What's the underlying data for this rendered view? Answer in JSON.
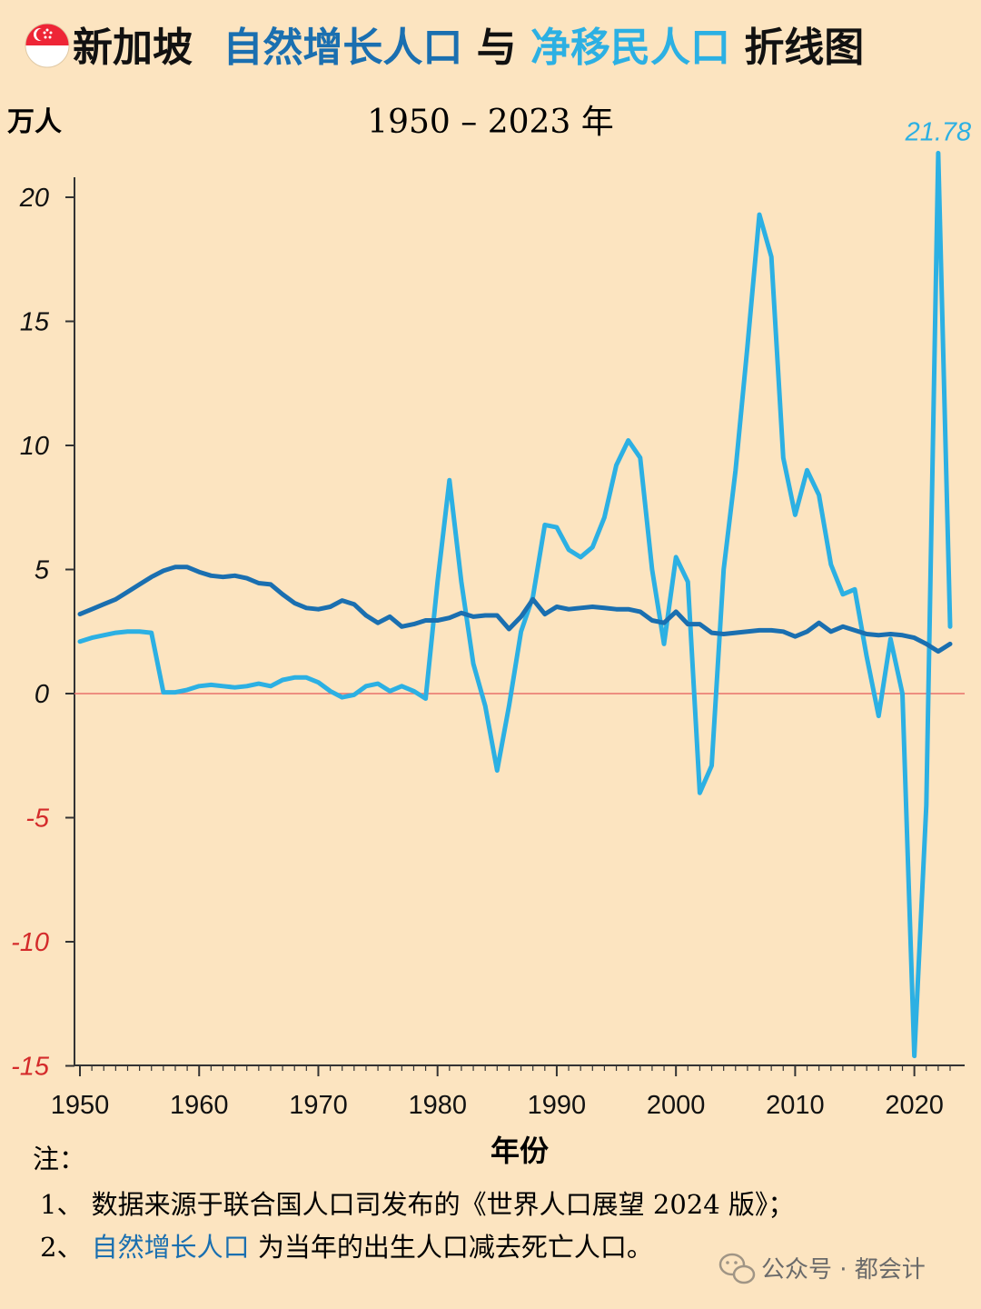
{
  "header": {
    "title_part1": "新加坡",
    "title_part2": "自然增长人口",
    "title_part3": "与",
    "title_part4": "净移民人口",
    "title_part5": " 折线图",
    "subtitle": "1950 – 2023 年",
    "unit": "万人",
    "flag_icon": "singapore-flag-icon"
  },
  "colors": {
    "natural": "#1a6fb0",
    "migration": "#2cb0e3",
    "zero_line": "#e8716b",
    "negative_tick": "#d42b2b",
    "axis": "#333333"
  },
  "chart_data": {
    "type": "line",
    "xlabel": "年份",
    "ylabel": "万人",
    "xlim": [
      1950,
      2023
    ],
    "ylim": [
      -15,
      22
    ],
    "xticks": [
      "1950",
      "1960",
      "1970",
      "1980",
      "1990",
      "2000",
      "2010",
      "2020"
    ],
    "yticks": [
      "20",
      "15",
      "10",
      "5",
      "0",
      "-5",
      "-10",
      "-15"
    ],
    "x": [
      1950,
      1951,
      1952,
      1953,
      1954,
      1955,
      1956,
      1957,
      1958,
      1959,
      1960,
      1961,
      1962,
      1963,
      1964,
      1965,
      1966,
      1967,
      1968,
      1969,
      1970,
      1971,
      1972,
      1973,
      1974,
      1975,
      1976,
      1977,
      1978,
      1979,
      1980,
      1981,
      1982,
      1983,
      1984,
      1985,
      1986,
      1987,
      1988,
      1989,
      1990,
      1991,
      1992,
      1993,
      1994,
      1995,
      1996,
      1997,
      1998,
      1999,
      2000,
      2001,
      2002,
      2003,
      2004,
      2005,
      2006,
      2007,
      2008,
      2009,
      2010,
      2011,
      2012,
      2013,
      2014,
      2015,
      2016,
      2017,
      2018,
      2019,
      2020,
      2021,
      2022,
      2023
    ],
    "series": [
      {
        "name": "自然增长人口",
        "values": [
          3.2,
          3.4,
          3.6,
          3.8,
          4.1,
          4.4,
          4.7,
          4.95,
          5.1,
          5.1,
          4.9,
          4.75,
          4.7,
          4.75,
          4.65,
          4.45,
          4.4,
          4.0,
          3.65,
          3.45,
          3.4,
          3.5,
          3.75,
          3.6,
          3.15,
          2.85,
          3.1,
          2.7,
          2.8,
          2.95,
          2.95,
          3.05,
          3.25,
          3.1,
          3.15,
          3.15,
          2.6,
          3.1,
          3.8,
          3.2,
          3.5,
          3.4,
          3.45,
          3.5,
          3.45,
          3.4,
          3.4,
          3.3,
          2.95,
          2.85,
          3.3,
          2.8,
          2.8,
          2.45,
          2.4,
          2.45,
          2.5,
          2.55,
          2.55,
          2.5,
          2.3,
          2.5,
          2.85,
          2.5,
          2.7,
          2.55,
          2.4,
          2.35,
          2.4,
          2.35,
          2.25,
          2.0,
          1.7,
          2.0
        ]
      },
      {
        "name": "净移民人口",
        "values": [
          2.1,
          2.25,
          2.35,
          2.45,
          2.5,
          2.5,
          2.45,
          0.05,
          0.05,
          0.15,
          0.3,
          0.35,
          0.3,
          0.25,
          0.3,
          0.4,
          0.3,
          0.55,
          0.65,
          0.65,
          0.45,
          0.1,
          -0.15,
          -0.05,
          0.3,
          0.4,
          0.1,
          0.3,
          0.1,
          -0.2,
          4.5,
          8.6,
          4.5,
          1.2,
          -0.5,
          -3.1,
          -0.5,
          2.5,
          3.9,
          6.8,
          6.7,
          5.8,
          5.5,
          5.9,
          7.1,
          9.2,
          10.2,
          9.5,
          5.0,
          2.0,
          5.5,
          4.5,
          -4.0,
          -2.9,
          5.0,
          9.0,
          14.0,
          19.3,
          17.6,
          9.5,
          7.2,
          9.0,
          8.0,
          5.2,
          4.0,
          4.2,
          1.5,
          -0.9,
          2.2,
          0.0,
          -14.6,
          -4.5,
          21.78,
          2.7
        ]
      }
    ],
    "annotation": "21.78"
  },
  "notes": {
    "label": "注：",
    "item1": "1、 数据来源于联合国人口司发布的《世界人口展望 2024 版》；",
    "item2_prefix": "2、 ",
    "item2_highlight": "自然增长人口",
    "item2_suffix": "为当年的出生人口减去死亡人口。"
  },
  "watermark": {
    "text": "公众号 · 都会计",
    "icon": "wechat-icon"
  }
}
